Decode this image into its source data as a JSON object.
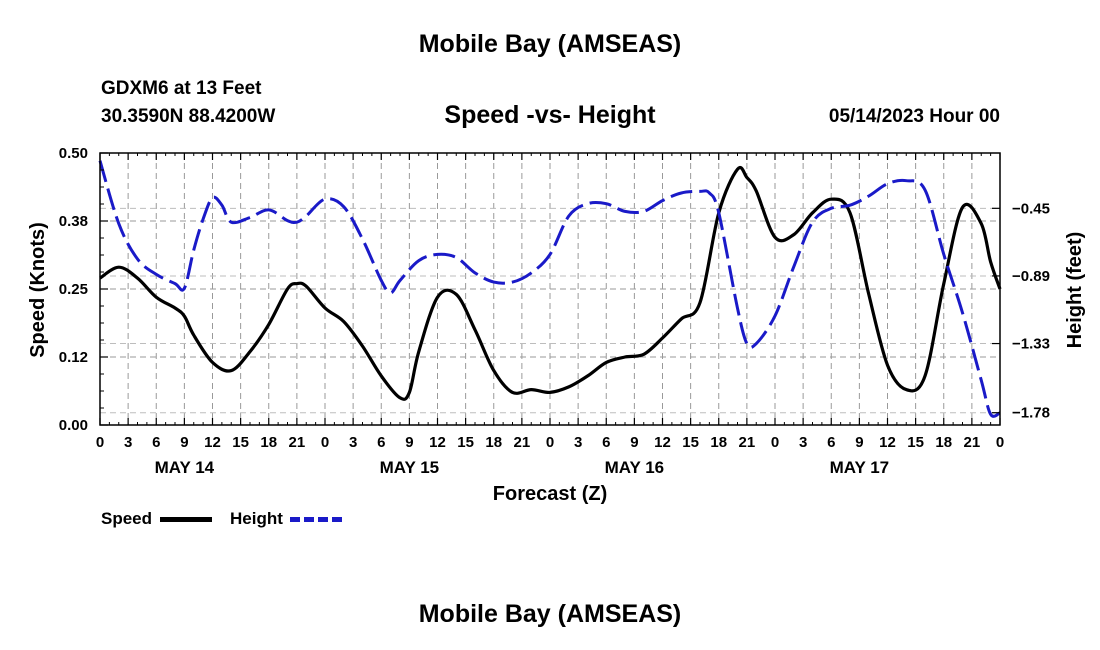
{
  "title": "Mobile Bay (AMSEAS)",
  "footer_title": "Mobile Bay (AMSEAS)",
  "station": "GDXM6 at 13 Feet",
  "coordinates": "30.3590N  88.4200W",
  "subtitle": "Speed -vs- Height",
  "datetime": "05/14/2023 Hour 00",
  "colors": {
    "speed": "#000000",
    "height": "#1a1ac8",
    "grid": "#9a9a9a"
  },
  "chart_data": {
    "type": "line",
    "title": "Speed -vs- Height",
    "xlabel": "Forecast (Z)",
    "ylabel": "Speed (Knots)",
    "y2label": "Height (feet)",
    "grid": true,
    "legend_position": "bottom-left",
    "x_range_hours": [
      0,
      96
    ],
    "x_tick_labels": [
      "0",
      "3",
      "6",
      "9",
      "12",
      "15",
      "18",
      "21",
      "0",
      "3",
      "6",
      "9",
      "12",
      "15",
      "18",
      "21",
      "0",
      "3",
      "6",
      "9",
      "12",
      "15",
      "18",
      "21",
      "0",
      "3",
      "6",
      "9",
      "12",
      "15",
      "18",
      "21",
      "0"
    ],
    "day_labels": [
      {
        "label": "MAY 14",
        "hour": 9
      },
      {
        "label": "MAY 15",
        "hour": 33
      },
      {
        "label": "MAY 16",
        "hour": 57
      },
      {
        "label": "MAY 17",
        "hour": 81
      }
    ],
    "y_left": {
      "range": [
        0,
        0.5
      ],
      "ticks": [
        "0.00",
        "0.12",
        "0.25",
        "0.38",
        "0.50"
      ]
    },
    "y_right": {
      "range": [
        -1.86,
        -0.09
      ],
      "ticks": [
        {
          "label": "-0.45",
          "value": -0.45
        },
        {
          "label": "-0.89",
          "value": -0.89
        },
        {
          "label": "-1.33",
          "value": -1.33
        },
        {
          "label": "-1.78",
          "value": -1.78
        }
      ]
    },
    "legend": [
      "Speed",
      "Height"
    ],
    "series": [
      {
        "name": "Speed",
        "axis": "left",
        "style": "solid",
        "x": [
          0,
          2,
          4,
          6,
          8,
          9,
          10,
          12,
          14,
          16,
          18,
          20,
          21,
          22,
          24,
          26,
          28,
          30,
          32,
          33,
          34,
          36,
          38,
          40,
          42,
          44,
          46,
          48,
          50,
          52,
          54,
          56,
          58,
          60,
          62,
          64,
          66,
          68,
          69,
          70,
          72,
          74,
          76,
          78,
          80,
          82,
          84,
          86,
          88,
          90,
          92,
          94,
          95,
          96
        ],
        "values": [
          0.27,
          0.29,
          0.27,
          0.235,
          0.215,
          0.2,
          0.165,
          0.115,
          0.1,
          0.135,
          0.185,
          0.25,
          0.26,
          0.255,
          0.215,
          0.19,
          0.145,
          0.09,
          0.05,
          0.06,
          0.135,
          0.235,
          0.24,
          0.175,
          0.1,
          0.06,
          0.065,
          0.06,
          0.07,
          0.09,
          0.115,
          0.125,
          0.13,
          0.16,
          0.195,
          0.225,
          0.39,
          0.47,
          0.455,
          0.43,
          0.345,
          0.35,
          0.39,
          0.415,
          0.39,
          0.24,
          0.11,
          0.065,
          0.09,
          0.26,
          0.4,
          0.37,
          0.3,
          0.25
        ]
      },
      {
        "name": "Height",
        "axis": "right",
        "style": "dashed",
        "x": [
          0,
          2,
          4,
          6,
          8,
          9,
          10,
          11,
          12,
          13,
          14,
          16,
          18,
          20,
          21,
          22,
          24,
          26,
          28,
          30,
          31,
          32,
          34,
          36,
          38,
          40,
          42,
          44,
          46,
          48,
          50,
          52,
          54,
          56,
          58,
          60,
          62,
          64,
          65,
          66,
          68,
          69,
          70,
          72,
          74,
          76,
          78,
          80,
          82,
          84,
          86,
          88,
          90,
          92,
          94,
          95,
          96
        ],
        "values": [
          -0.14,
          -0.55,
          -0.78,
          -0.88,
          -0.94,
          -0.97,
          -0.72,
          -0.52,
          -0.38,
          -0.43,
          -0.54,
          -0.51,
          -0.46,
          -0.53,
          -0.54,
          -0.5,
          -0.39,
          -0.44,
          -0.65,
          -0.92,
          -1.0,
          -0.92,
          -0.79,
          -0.75,
          -0.77,
          -0.87,
          -0.93,
          -0.93,
          -0.87,
          -0.75,
          -0.5,
          -0.42,
          -0.42,
          -0.47,
          -0.47,
          -0.4,
          -0.35,
          -0.34,
          -0.35,
          -0.48,
          -1.1,
          -1.33,
          -1.33,
          -1.15,
          -0.83,
          -0.54,
          -0.45,
          -0.43,
          -0.37,
          -0.29,
          -0.27,
          -0.33,
          -0.75,
          -1.13,
          -1.57,
          -1.79,
          -1.78
        ]
      }
    ]
  }
}
